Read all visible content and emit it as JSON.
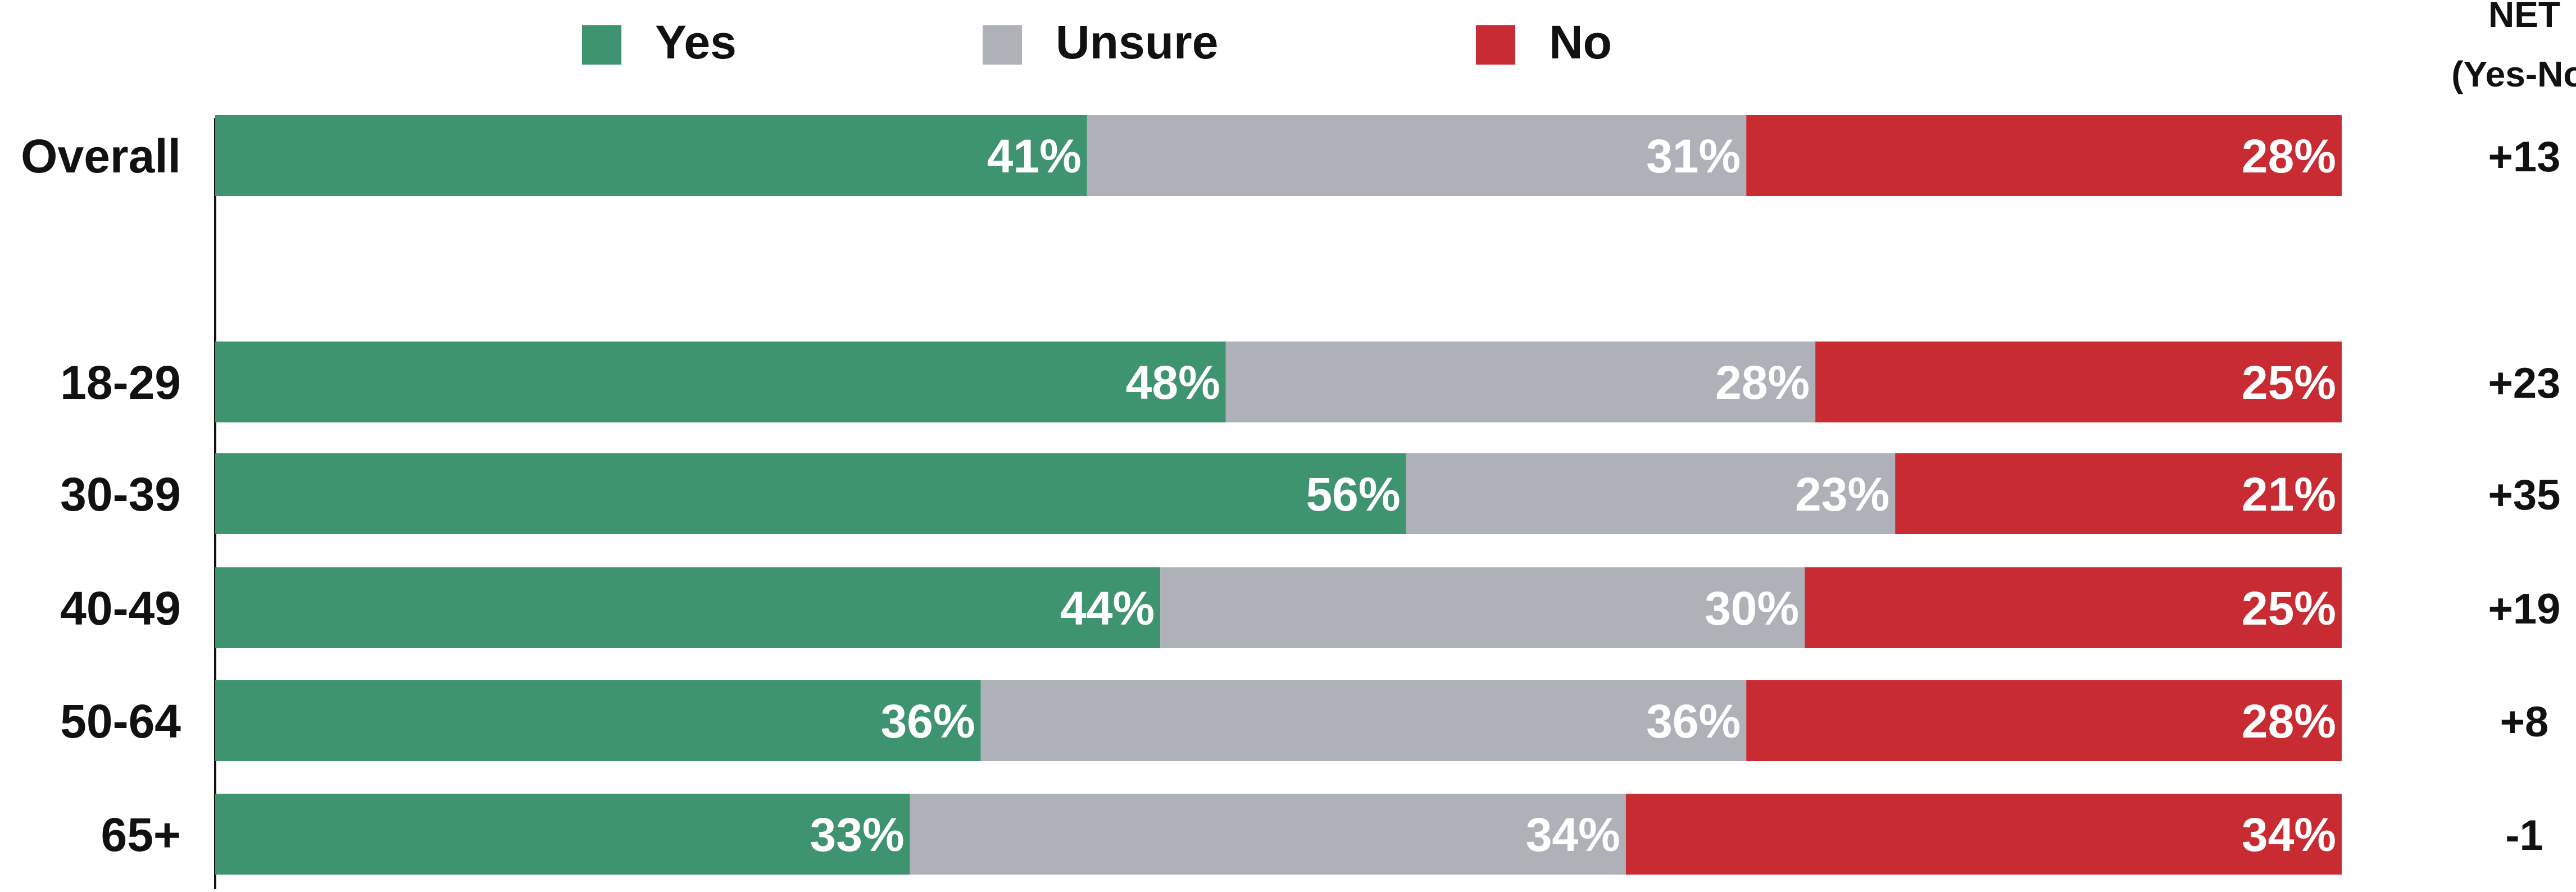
{
  "chart_data": {
    "type": "bar",
    "orientation": "horizontal",
    "stacked": true,
    "percent_scale": true,
    "categories": [
      "Overall",
      "18-29",
      "30-39",
      "40-49",
      "50-64",
      "65+"
    ],
    "series": [
      {
        "name": "Yes",
        "color": "#3f9470",
        "values": [
          41,
          48,
          56,
          44,
          36,
          33
        ],
        "labels": [
          "41%",
          "48%",
          "56%",
          "44%",
          "36%",
          "33%"
        ]
      },
      {
        "name": "Unsure",
        "color": "#aeb2b8",
        "values": [
          31,
          28,
          23,
          30,
          36,
          34
        ],
        "labels": [
          "31%",
          "28%",
          "23%",
          "30%",
          "36%",
          "34%"
        ]
      },
      {
        "name": "No",
        "color": "#c92b33",
        "values": [
          28,
          25,
          21,
          25,
          28,
          34
        ],
        "labels": [
          "28%",
          "25%",
          "21%",
          "25%",
          "28%",
          "34%"
        ]
      }
    ],
    "net": {
      "header_line1": "NET",
      "header_line2": "(Yes-No)",
      "values": [
        "+13",
        "+23",
        "+35",
        "+19",
        "+8",
        "-1"
      ]
    },
    "legend_position": "top",
    "grid": false
  }
}
